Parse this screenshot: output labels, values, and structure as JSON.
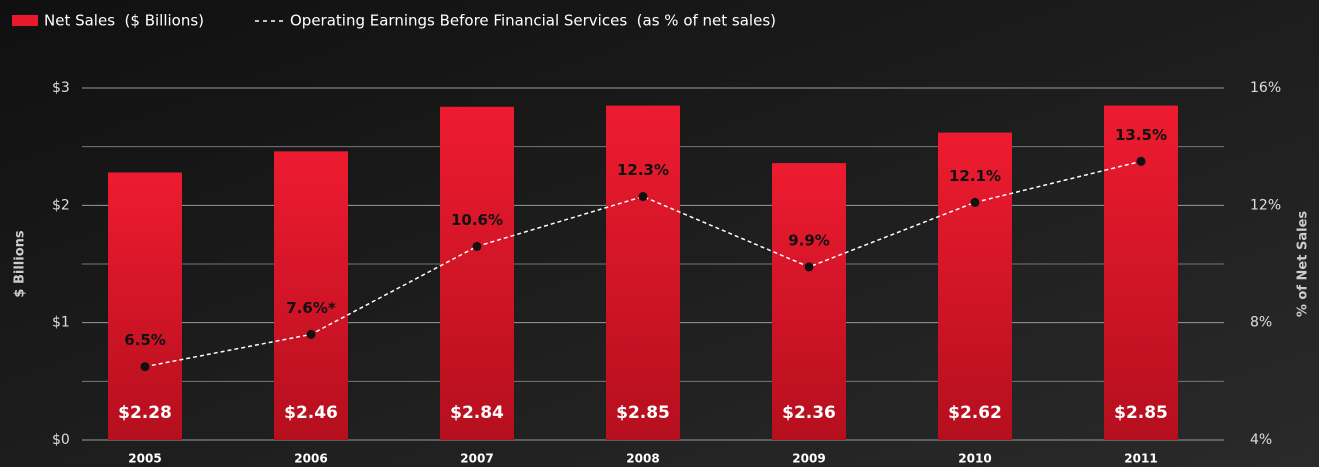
{
  "chart_data": {
    "type": "bar_line",
    "categories": [
      "2005",
      "2006",
      "2007",
      "2008",
      "2009",
      "2010",
      "2011"
    ],
    "series": [
      {
        "name": "Net Sales  ($ Billions)",
        "color": "#e8192c",
        "values": [
          2.28,
          2.46,
          2.84,
          2.85,
          2.36,
          2.62,
          2.85
        ],
        "value_labels": [
          "$2.28",
          "$2.46",
          "$2.84",
          "$2.85",
          "$2.36",
          "$2.62",
          "$2.85"
        ]
      },
      {
        "name": "Operating Earnings Before Financial Services  (as % of net sales)",
        "color": "#ffffff",
        "axis": "y2",
        "values": [
          6.5,
          7.6,
          10.6,
          12.3,
          9.9,
          12.1,
          13.5
        ],
        "value_labels": [
          "6.5%",
          "7.6%*",
          "10.6%",
          "12.3%",
          "9.9%",
          "12.1%",
          "13.5%"
        ]
      }
    ],
    "ylabel": "$ Billions",
    "y2label": "% of Net Sales",
    "ylim": [
      0,
      3
    ],
    "yticks": [
      {
        "value": 0,
        "label": "$0"
      },
      {
        "value": 1,
        "label": "$1"
      },
      {
        "value": 2,
        "label": "$2"
      },
      {
        "value": 3,
        "label": "$3"
      }
    ],
    "minor_yticks": [
      0.5,
      1.5,
      2.5
    ],
    "y2lim": [
      4,
      16
    ],
    "y2ticks": [
      {
        "value": 4,
        "label": "4%"
      },
      {
        "value": 8,
        "label": "8%"
      },
      {
        "value": 12,
        "label": "12%"
      },
      {
        "value": 16,
        "label": "16%"
      }
    ],
    "grid": true,
    "legend": "top-left"
  }
}
